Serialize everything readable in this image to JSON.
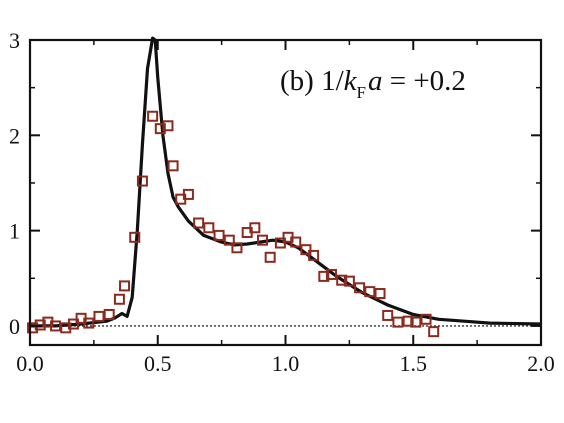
{
  "chart_data": {
    "type": "line",
    "title": "",
    "xlabel": "",
    "ylabel": "",
    "xlim": [
      0.0,
      2.0
    ],
    "ylim": [
      -0.2,
      3.0
    ],
    "x_ticks": [
      "0.0",
      "0.5",
      "1.0",
      "1.5",
      "2.0"
    ],
    "y_ticks": [
      "0",
      "1",
      "2",
      "3"
    ],
    "annotation": {
      "prefix": "(b) 1/",
      "k": "k",
      "sub": "F",
      "a": "a",
      "suffix": " = +0.2"
    },
    "colors": {
      "line": "#111111",
      "markers": "#8b2a1e",
      "reference": "#333333"
    },
    "reference_line_y": 0,
    "series": [
      {
        "style": "solid line",
        "x": [
          0.0,
          0.1,
          0.2,
          0.3,
          0.33,
          0.36,
          0.38,
          0.4,
          0.42,
          0.44,
          0.46,
          0.48,
          0.49,
          0.5,
          0.52,
          0.54,
          0.56,
          0.58,
          0.62,
          0.68,
          0.75,
          0.8,
          0.85,
          0.9,
          0.95,
          1.0,
          1.05,
          1.1,
          1.15,
          1.2,
          1.3,
          1.4,
          1.5,
          1.6,
          1.7,
          1.8,
          2.0
        ],
        "y": [
          0.0,
          0.0,
          0.02,
          0.05,
          0.08,
          0.13,
          0.1,
          0.3,
          1.0,
          1.9,
          2.7,
          3.05,
          3.0,
          2.6,
          2.0,
          1.6,
          1.35,
          1.25,
          1.1,
          0.95,
          0.88,
          0.85,
          0.86,
          0.88,
          0.9,
          0.88,
          0.82,
          0.72,
          0.62,
          0.52,
          0.35,
          0.22,
          0.12,
          0.07,
          0.05,
          0.03,
          0.02
        ]
      },
      {
        "style": "open squares",
        "x": [
          0.01,
          0.04,
          0.07,
          0.1,
          0.14,
          0.17,
          0.2,
          0.23,
          0.27,
          0.31,
          0.35,
          0.37,
          0.41,
          0.44,
          0.48,
          0.51,
          0.54,
          0.56,
          0.59,
          0.62,
          0.66,
          0.7,
          0.74,
          0.78,
          0.81,
          0.85,
          0.88,
          0.91,
          0.94,
          0.98,
          1.01,
          1.04,
          1.08,
          1.11,
          1.15,
          1.18,
          1.22,
          1.25,
          1.29,
          1.33,
          1.37,
          1.4,
          1.44,
          1.48,
          1.51,
          1.55,
          1.58
        ],
        "y": [
          -0.02,
          0.01,
          0.04,
          0.0,
          -0.02,
          0.02,
          0.08,
          0.03,
          0.1,
          0.12,
          0.28,
          0.42,
          0.93,
          1.52,
          2.2,
          2.07,
          2.1,
          1.68,
          1.33,
          1.38,
          1.08,
          1.03,
          0.95,
          0.9,
          0.82,
          0.98,
          1.03,
          0.9,
          0.72,
          0.87,
          0.93,
          0.88,
          0.8,
          0.74,
          0.52,
          0.54,
          0.48,
          0.47,
          0.4,
          0.36,
          0.34,
          0.11,
          0.04,
          0.05,
          0.04,
          0.07,
          -0.06
        ]
      }
    ]
  }
}
